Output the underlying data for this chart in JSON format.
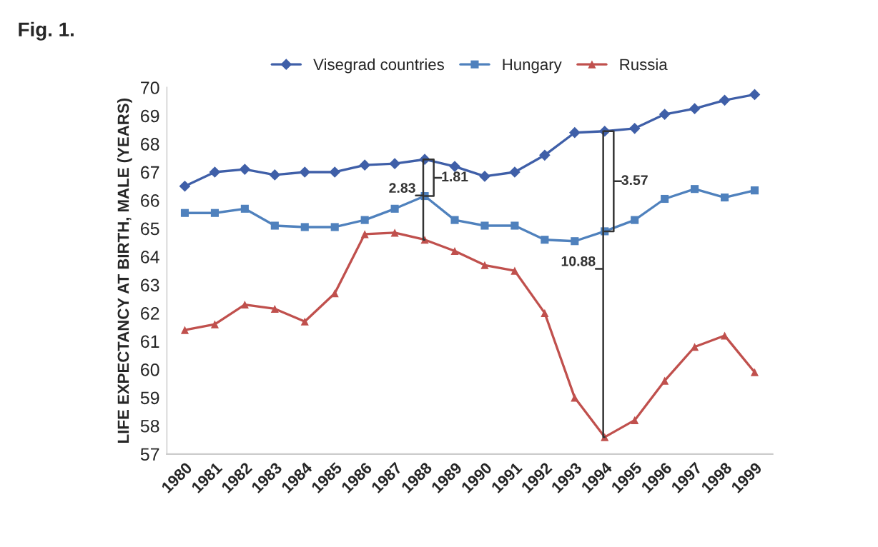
{
  "chart_data": {
    "type": "line",
    "title": "Fig. 1.",
    "ylabel": "LIFE EXPECTANCY AT BIRTH, MALE (YEARS)",
    "categories": [
      "1980",
      "1981",
      "1982",
      "1983",
      "1984",
      "1985",
      "1986",
      "1987",
      "1988",
      "1989",
      "1990",
      "1991",
      "1992",
      "1993",
      "1994",
      "1995",
      "1996",
      "1997",
      "1998",
      "1999"
    ],
    "series": [
      {
        "name": "Visegrad countries",
        "color": "#3f5fa8",
        "marker": "diamond",
        "values": [
          66.5,
          67.0,
          67.1,
          66.9,
          67.0,
          67.0,
          67.25,
          67.3,
          67.45,
          67.2,
          66.85,
          67.0,
          67.6,
          68.4,
          68.45,
          68.55,
          69.05,
          69.25,
          69.55,
          69.75
        ]
      },
      {
        "name": "Hungary",
        "color": "#4f81bd",
        "marker": "square",
        "values": [
          65.55,
          65.55,
          65.7,
          65.1,
          65.05,
          65.05,
          65.3,
          65.7,
          66.15,
          65.3,
          65.1,
          65.1,
          64.6,
          64.55,
          64.9,
          65.3,
          66.05,
          66.4,
          66.1,
          66.35
        ]
      },
      {
        "name": "Russia",
        "color": "#c0504d",
        "marker": "triangle",
        "values": [
          61.4,
          61.6,
          62.3,
          62.15,
          61.7,
          62.7,
          64.8,
          64.85,
          64.6,
          64.2,
          63.7,
          63.5,
          62.0,
          59.0,
          57.6,
          58.2,
          59.6,
          60.8,
          61.2,
          59.9
        ]
      }
    ],
    "ylim": [
      57,
      70
    ],
    "yticks": [
      57,
      58,
      59,
      60,
      61,
      62,
      63,
      64,
      65,
      66,
      67,
      68,
      69,
      70
    ],
    "annotations": [
      {
        "text": "2.83",
        "x": "1988",
        "y": 64.6
      },
      {
        "text": "1.81",
        "x": "1988",
        "y": 66.15
      },
      {
        "text": "10.88",
        "x": "1994",
        "y": 57.6
      },
      {
        "text": "3.57",
        "x": "1994",
        "y": 64.9
      }
    ],
    "legend": "top",
    "grid": false,
    "line_style": "solid"
  }
}
